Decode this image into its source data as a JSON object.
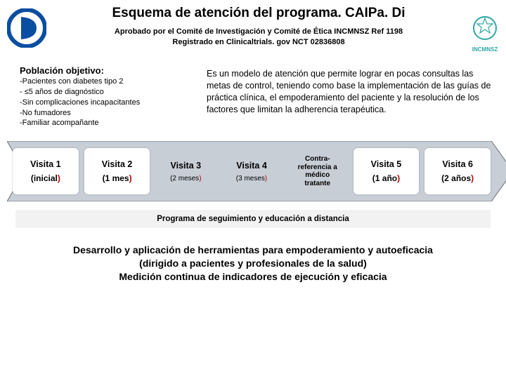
{
  "colors": {
    "arrow_fill": "#c8ced6",
    "arrow_stroke": "#6b6f78",
    "card_bg": "#ffffff",
    "follow_bg": "#f2f2f2",
    "logo_blue": "#0a4ea2",
    "logo_teal": "#2fa6a6",
    "paren_highlight": "#c00000"
  },
  "header": {
    "title": "Esquema de atención del programa. CAIPa. Di",
    "subtitle_line1": "Aprobado por el Comité de Investigación y Comité de Ética INCMNSZ Ref 1198",
    "subtitle_line2": "Registrado en Clinicaltrials. gov NCT 02836808",
    "right_logo_label": "INCMNSZ"
  },
  "population": {
    "title": "Población objetivo:",
    "items": [
      "-Pacientes con diabetes tipo 2",
      "- ≤5 años de diagnóstico",
      "-Sin complicaciones incapacitantes",
      "-No fumadores",
      "-Familiar acompañante"
    ]
  },
  "description": "Es un modelo de atención que permite lograr en pocas consultas las metas de control, teniendo como base la implementación de las guías de práctica clínica, el empoderamiento del paciente y la resolución de los factores que limitan la adherencia terapéutica.",
  "visits": [
    {
      "line1": "Visita 1",
      "line2_pre": "(inicial",
      "line2_post": ")",
      "card": true
    },
    {
      "line1": "Visita 2",
      "line2_pre": "(1 mes",
      "line2_post": ")",
      "card": true
    },
    {
      "line1": "Visita 3",
      "line2_pre": "(2 meses",
      "line2_post": ")",
      "card": false,
      "small": true
    },
    {
      "line1": "Visita 4",
      "line2_pre": "(3 meses",
      "line2_post": ")",
      "card": false,
      "small": true
    },
    {
      "line1": "Contra-\nreferencia a\nmédico\ntratante",
      "line2_pre": "",
      "line2_post": "",
      "card": false,
      "contra": true
    },
    {
      "line1": "Visita 5",
      "line2_pre": "(1 año",
      "line2_post": ")",
      "card": true
    },
    {
      "line1": "Visita 6",
      "line2_pre": "(2 años",
      "line2_post": ")",
      "card": true
    }
  ],
  "follow_band": "Programa de seguimiento y educación a distancia",
  "bottom": {
    "l1": "Desarrollo y aplicación de herramientas para empoderamiento y autoeficacia",
    "l2": "(dirigido a pacientes y profesionales de la salud)",
    "l3": "Medición continua de indicadores de ejecución y eficacia"
  }
}
